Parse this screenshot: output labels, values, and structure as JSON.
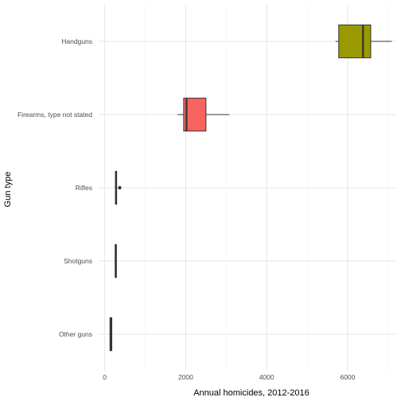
{
  "chart_data": {
    "type": "boxplot",
    "orientation": "horizontal",
    "xlabel": "Annual homicides, 2012-2016",
    "ylabel": "Gun type",
    "xlim": [
      -150,
      7200
    ],
    "x_ticks": [
      0,
      2000,
      4000,
      6000
    ],
    "grid": true,
    "legend": "none",
    "categories": [
      "Handguns",
      "Firearms, type not stated",
      "Rifles",
      "Shotguns",
      "Other guns"
    ],
    "boxes": [
      {
        "category": "Handguns",
        "whisker_low": 5700,
        "q1": 5780,
        "median": 6380,
        "q3": 6570,
        "whisker_high": 7090,
        "outliers": [],
        "color": "#999900"
      },
      {
        "category": "Firearms, type not stated",
        "whisker_low": 1800,
        "q1": 1950,
        "median": 2020,
        "q3": 2500,
        "whisker_high": 3080,
        "outliers": [],
        "color": "#F8635F"
      },
      {
        "category": "Rifles",
        "whisker_low": 260,
        "q1": 265,
        "median": 280,
        "q3": 295,
        "whisker_high": 300,
        "outliers": [
          370
        ],
        "color": "#3A2E39"
      },
      {
        "category": "Shotguns",
        "whisker_low": 250,
        "q1": 260,
        "median": 270,
        "q3": 285,
        "whisker_high": 290,
        "outliers": [],
        "color": "#3A2E39"
      },
      {
        "category": "Other guns",
        "whisker_low": 120,
        "q1": 130,
        "median": 150,
        "q3": 175,
        "whisker_high": 180,
        "outliers": [],
        "color": "#2E7D5B"
      }
    ]
  }
}
